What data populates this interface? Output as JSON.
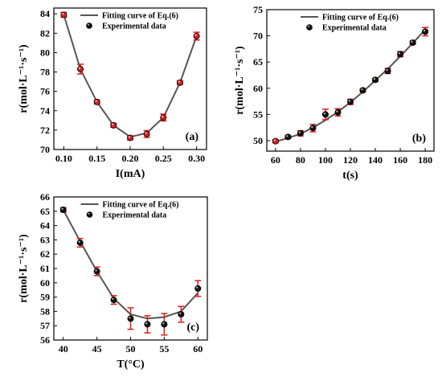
{
  "colors": {
    "fit_line": "#555555",
    "marker": "#111111",
    "marker_red": "#d42020",
    "errorbar": "#e01b1b",
    "axis": "#000000"
  },
  "chart_data": [
    {
      "id": "a",
      "type": "scatter",
      "panel_label": "(a)",
      "xlabel": "I(mA)",
      "ylabel": "r(mol·L⁻¹·s⁻¹)",
      "xlim": [
        0.085,
        0.315
      ],
      "ylim": [
        70,
        84.6
      ],
      "xticks": [
        0.1,
        0.15,
        0.2,
        0.25,
        0.3
      ],
      "xtick_labels": [
        "0.10",
        "0.15",
        "0.20",
        "0.25",
        "0.30"
      ],
      "yticks": [
        70,
        72,
        74,
        76,
        78,
        80,
        82,
        84
      ],
      "ytick_labels": [
        "70",
        "72",
        "74",
        "76",
        "78",
        "80",
        "82",
        "84"
      ],
      "legend_position": "top-center",
      "legend": [
        "Fitting curve of Eq.(6)",
        "Experimental data"
      ],
      "marker_style": "red",
      "fit": {
        "x": [
          0.1,
          0.125,
          0.15,
          0.175,
          0.2,
          0.225,
          0.25,
          0.275,
          0.3
        ],
        "y": [
          83.9,
          78.3,
          74.9,
          72.5,
          71.3,
          71.7,
          73.3,
          76.9,
          81.7
        ]
      },
      "data": {
        "x": [
          0.1,
          0.125,
          0.15,
          0.175,
          0.2,
          0.225,
          0.25,
          0.275,
          0.3
        ],
        "y": [
          83.9,
          78.3,
          74.9,
          72.5,
          71.2,
          71.6,
          73.3,
          76.9,
          81.7
        ],
        "err": [
          0.25,
          0.5,
          0.2,
          0.2,
          0.2,
          0.35,
          0.35,
          0.2,
          0.4
        ]
      }
    },
    {
      "id": "b",
      "type": "scatter",
      "panel_label": "(b)",
      "xlabel": "t(s)",
      "ylabel": "r(mol·L⁻¹·s⁻¹)",
      "xlim": [
        53,
        187
      ],
      "ylim": [
        48,
        75
      ],
      "xticks": [
        60,
        80,
        100,
        120,
        140,
        160,
        180
      ],
      "xtick_labels": [
        "60",
        "80",
        "100",
        "120",
        "140",
        "160",
        "180"
      ],
      "yticks": [
        50,
        55,
        60,
        65,
        70,
        75
      ],
      "ytick_labels": [
        "50",
        "55",
        "60",
        "65",
        "70",
        "75"
      ],
      "legend_position": "top-center",
      "legend": [
        "Fitting curve of Eq.(6)",
        "Experimental data"
      ],
      "marker_style": "red-first",
      "fit": {
        "x": [
          60,
          70,
          80,
          90,
          100,
          110,
          120,
          130,
          140,
          150,
          160,
          170,
          180
        ],
        "y": [
          49.8,
          50.5,
          51.3,
          52.5,
          53.9,
          55.5,
          57.3,
          59.3,
          61.5,
          63.7,
          66.1,
          68.6,
          71.2
        ]
      },
      "data": {
        "x": [
          60,
          70,
          80,
          90,
          100,
          110,
          120,
          130,
          140,
          150,
          160,
          170,
          180
        ],
        "y": [
          49.9,
          50.7,
          51.4,
          52.4,
          55.0,
          55.4,
          57.4,
          59.6,
          61.6,
          63.3,
          66.5,
          68.7,
          70.8
        ],
        "err": [
          0.3,
          0.3,
          0.5,
          0.7,
          1.0,
          0.7,
          0.5,
          0.3,
          0.3,
          0.5,
          0.5,
          0.3,
          0.8
        ]
      }
    },
    {
      "id": "c",
      "type": "scatter",
      "panel_label": "(c)",
      "xlabel": "T(°C)",
      "ylabel": "r(mol·L⁻¹·s⁻¹)",
      "xlim": [
        38.6,
        61.4
      ],
      "ylim": [
        56,
        66
      ],
      "xticks": [
        40,
        45,
        50,
        55,
        60
      ],
      "xtick_labels": [
        "40",
        "45",
        "50",
        "55",
        "60"
      ],
      "yticks": [
        56,
        57,
        58,
        59,
        60,
        61,
        62,
        63,
        64,
        65,
        66
      ],
      "ytick_labels": [
        "56",
        "57",
        "58",
        "59",
        "60",
        "61",
        "62",
        "63",
        "64",
        "65",
        "66"
      ],
      "legend_position": "top-center",
      "legend": [
        "Fitting curve of Eq.(6)",
        "Experimental data"
      ],
      "marker_style": "black",
      "fit": {
        "x": [
          40,
          42.5,
          45,
          47.5,
          50,
          52.5,
          55,
          57.5,
          60
        ],
        "y": [
          65.1,
          62.9,
          60.8,
          58.9,
          57.8,
          57.5,
          57.6,
          58.0,
          59.3
        ]
      },
      "data": {
        "x": [
          40,
          42.5,
          45,
          47.5,
          50,
          52.5,
          55,
          57.5,
          60
        ],
        "y": [
          65.1,
          62.8,
          60.8,
          58.8,
          57.5,
          57.1,
          57.1,
          57.8,
          59.6
        ],
        "err": [
          0.15,
          0.3,
          0.3,
          0.3,
          0.75,
          0.6,
          0.75,
          0.55,
          0.55
        ]
      }
    }
  ]
}
